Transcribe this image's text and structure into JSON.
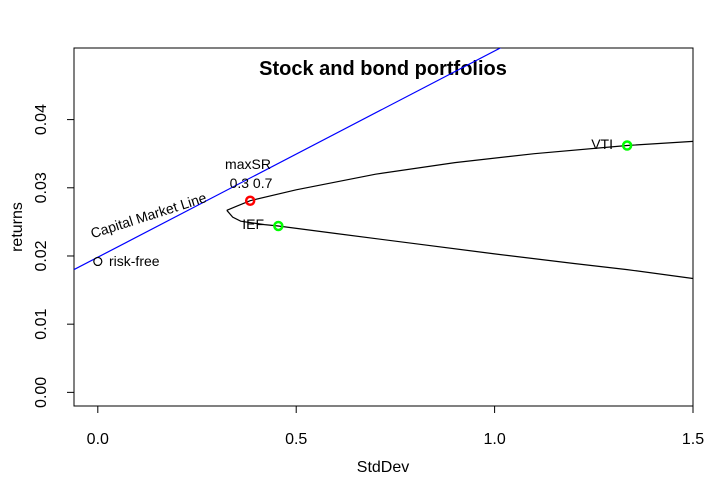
{
  "chart_data": {
    "type": "line",
    "title": "Stock and bond portfolios",
    "xlabel": "StdDev",
    "ylabel": "returns",
    "xlim": [
      -0.06,
      1.5
    ],
    "ylim": [
      -0.002,
      0.0505
    ],
    "x_ticks": [
      0.0,
      0.5,
      1.0,
      1.5
    ],
    "x_tick_labels": [
      "0.0",
      "0.5",
      "1.0",
      "1.5"
    ],
    "y_ticks": [
      0.0,
      0.01,
      0.02,
      0.03,
      0.04
    ],
    "y_tick_labels": [
      "0.00",
      "0.01",
      "0.02",
      "0.03",
      "0.04"
    ],
    "grid": false,
    "colors": {
      "cml": "#0000ff",
      "frontier": "#000000",
      "asset_points": "#00ff00",
      "max_sr_point": "#ff0000",
      "risk_free_point": "#000000"
    },
    "series": [
      {
        "color": "#000000",
        "kind": "efficient-frontier",
        "x": [
          0.325,
          0.34,
          0.36,
          0.384,
          0.42,
          0.455,
          0.6,
          0.8,
          1.0,
          1.2,
          1.334,
          1.5
        ],
        "y": [
          0.0267,
          0.0257,
          0.0251,
          0.0249,
          0.0246,
          0.0244,
          0.0233,
          0.0218,
          0.0203,
          0.0189,
          0.018,
          0.0167
        ]
      },
      {
        "color": "#000000",
        "kind": "efficient-frontier",
        "x": [
          0.325,
          0.35,
          0.384,
          0.5,
          0.7,
          0.9,
          1.1,
          1.334,
          1.5
        ],
        "y": [
          0.0267,
          0.0273,
          0.0281,
          0.0297,
          0.032,
          0.0337,
          0.035,
          0.0362,
          0.0368
        ]
      },
      {
        "color": "#0000ff",
        "kind": "capital-market-line",
        "x": [
          -0.06,
          1.5
        ],
        "y": [
          0.018,
          0.0652
        ]
      }
    ],
    "points": [
      {
        "label": "risk-free",
        "x": 0.0,
        "y": 0.0192,
        "color": "#000000",
        "marker": "open-circle"
      },
      {
        "label": "maxSR",
        "x": 0.384,
        "y": 0.0281,
        "color": "#ff0000",
        "marker": "open-circle"
      },
      {
        "label": "IEF",
        "x": 0.455,
        "y": 0.0244,
        "color": "#00ff00",
        "marker": "open-circle"
      },
      {
        "label": "VTI",
        "x": 1.334,
        "y": 0.0362,
        "color": "#00ff00",
        "marker": "open-circle"
      }
    ],
    "annotations": {
      "cml_label": "Capital Market Line",
      "max_sr_label": "maxSR",
      "max_sr_weights": "0.3 0.7",
      "risk_free_label": "risk-free",
      "ief_label": "IEF",
      "vti_label": "VTI"
    }
  }
}
